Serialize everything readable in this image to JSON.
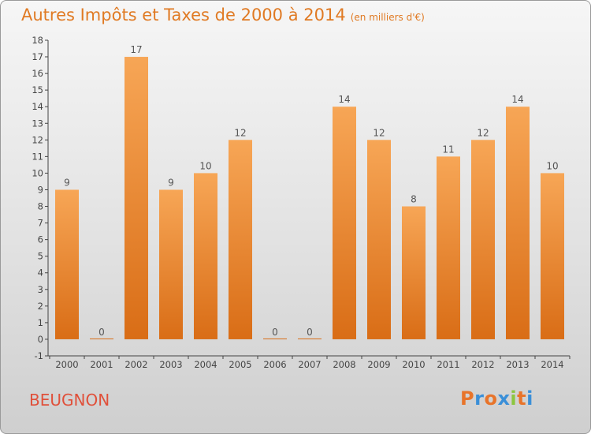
{
  "header": {
    "title": "Autres Impôts et Taxes de 2000 à 2014",
    "subtitle": "(en milliers d'€)"
  },
  "location": "BEUGNON",
  "logo": {
    "text": "Proxiti",
    "letters": [
      "P",
      "r",
      "o",
      "x",
      "i",
      "t",
      "i"
    ],
    "colors": [
      "#e8742a",
      "#3a8fd8",
      "#e8742a",
      "#3a8fd8",
      "#8cc63f",
      "#e8742a",
      "#3a8fd8"
    ]
  },
  "colors": {
    "title": "#e07a23",
    "location": "#e0503a",
    "bar_top": "#f7a656",
    "bar_bottom": "#d96d16",
    "axis": "#444444"
  },
  "chart_data": {
    "type": "bar",
    "title": "Autres Impôts et Taxes de 2000 à 2014",
    "subtitle": "(en milliers d'€)",
    "categories": [
      "2000",
      "2001",
      "2002",
      "2003",
      "2004",
      "2005",
      "2006",
      "2007",
      "2008",
      "2009",
      "2010",
      "2011",
      "2012",
      "2013",
      "2014"
    ],
    "values": [
      9,
      0,
      17,
      9,
      10,
      12,
      0,
      0,
      14,
      12,
      8,
      11,
      12,
      14,
      10
    ],
    "ylim": [
      -1,
      18
    ],
    "yticks": [
      -1,
      0,
      1,
      2,
      3,
      4,
      5,
      6,
      7,
      8,
      9,
      10,
      11,
      12,
      13,
      14,
      15,
      16,
      17,
      18
    ],
    "grid": false,
    "legend": "none"
  }
}
